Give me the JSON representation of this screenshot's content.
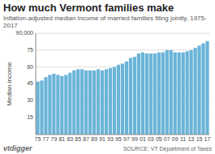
{
  "chart_data": {
    "type": "bar",
    "title": "How much Vermont families make",
    "subtitle": "Inflation-adjusted median income of married families filing jointly, 1975-2017",
    "y_label": "Median income",
    "annotations": [
      "vtdigger",
      "SOURCE: VT Department of Taxes"
    ],
    "categories": [
      "75",
      null,
      "77",
      null,
      "79",
      null,
      "81",
      null,
      "83",
      null,
      "85",
      null,
      "87",
      null,
      "89",
      null,
      "91",
      null,
      "93",
      null,
      "95",
      null,
      "97",
      null,
      "99",
      null,
      "01",
      null,
      "03",
      null,
      "05",
      null,
      "07",
      null,
      "09",
      null,
      "11",
      null,
      "13",
      null,
      "15",
      null,
      "17"
    ],
    "values": [
      47,
      48,
      51,
      53,
      54,
      53,
      52,
      53,
      55,
      57,
      58,
      58,
      57,
      57,
      57,
      58,
      57,
      58,
      59,
      60,
      62,
      63,
      65,
      68,
      69,
      72,
      73,
      72,
      72,
      72,
      73,
      73,
      75,
      75,
      73,
      73,
      73,
      74,
      75,
      77,
      79,
      81,
      83
    ],
    "color": "#6ab4d8",
    "ylim": [
      0,
      90
    ],
    "yticks": [
      15,
      30,
      45,
      60,
      75,
      {
        "value": 90,
        "label": "90,000"
      }
    ],
    "grid": true
  }
}
